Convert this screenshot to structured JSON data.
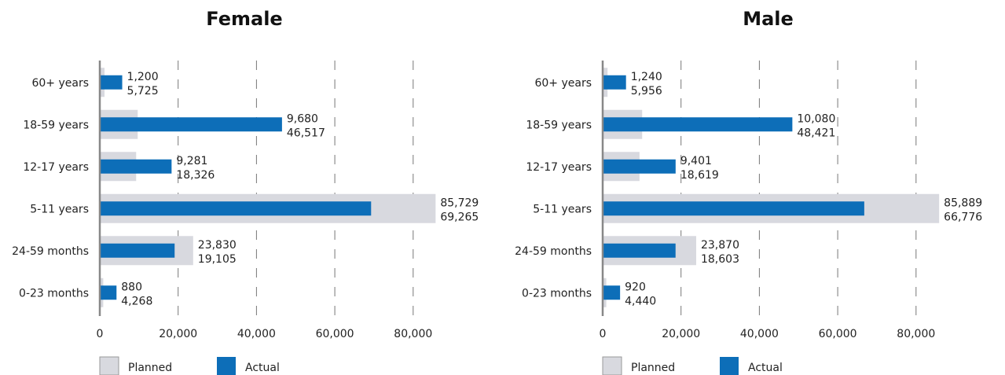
{
  "chart_data": [
    {
      "type": "bar",
      "orientation": "horizontal",
      "title": "Female",
      "categories": [
        "60+ years",
        "18-59 years",
        "12-17 years",
        "5-11 years",
        "24-59 months",
        "0-23 months"
      ],
      "series": [
        {
          "name": "Planned",
          "color": "#d8d9df",
          "values": [
            1200,
            9680,
            9281,
            85729,
            23830,
            880
          ]
        },
        {
          "name": "Actual",
          "color": "#0d6eb8",
          "values": [
            5725,
            46517,
            18326,
            69265,
            19105,
            4268
          ]
        }
      ],
      "value_labels": {
        "planned": [
          "1,200",
          "9,680",
          "9,281",
          "85,729",
          "23,830",
          "880"
        ],
        "actual": [
          "5,725",
          "46,517",
          "18,326",
          "69,265",
          "19,105",
          "4,268"
        ]
      },
      "xlim": [
        0,
        86000
      ],
      "xticks": [
        0,
        20000,
        40000,
        60000,
        80000
      ],
      "xtick_labels": [
        "0",
        "20,000",
        "40,000",
        "60,000",
        "80,000"
      ],
      "grid": "vertical-dashed",
      "legend": "bottom-left"
    },
    {
      "type": "bar",
      "orientation": "horizontal",
      "title": "Male",
      "categories": [
        "60+ years",
        "18-59 years",
        "12-17 years",
        "5-11 years",
        "24-59 months",
        "0-23 months"
      ],
      "series": [
        {
          "name": "Planned",
          "color": "#d8d9df",
          "values": [
            1240,
            10080,
            9401,
            85889,
            23870,
            920
          ]
        },
        {
          "name": "Actual",
          "color": "#0d6eb8",
          "values": [
            5956,
            48421,
            18619,
            66776,
            18603,
            4440
          ]
        }
      ],
      "value_labels": {
        "planned": [
          "1,240",
          "10,080",
          "9,401",
          "85,889",
          "23,870",
          "920"
        ],
        "actual": [
          "5,956",
          "48,421",
          "18,619",
          "66,776",
          "18,603",
          "4,440"
        ]
      },
      "xlim": [
        0,
        86000
      ],
      "xticks": [
        0,
        20000,
        40000,
        60000,
        80000
      ],
      "xtick_labels": [
        "0",
        "20,000",
        "40,000",
        "60,000",
        "80,000"
      ],
      "grid": "vertical-dashed",
      "legend": "bottom-left"
    }
  ]
}
